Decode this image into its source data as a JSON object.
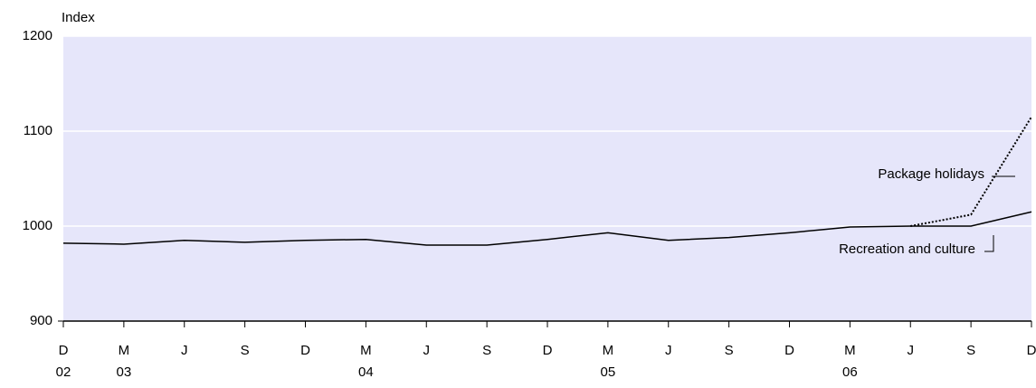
{
  "chart_data": {
    "type": "line",
    "y_label": "Index",
    "categories": [
      "D",
      "M",
      "J",
      "S",
      "D",
      "M",
      "J",
      "S",
      "D",
      "M",
      "J",
      "S",
      "D",
      "M",
      "J",
      "S",
      "D"
    ],
    "years": [
      "02",
      "03",
      null,
      null,
      null,
      "04",
      null,
      null,
      null,
      "05",
      null,
      null,
      null,
      "06",
      null,
      null,
      null
    ],
    "series": [
      {
        "name": "Recreation and culture",
        "color": "#000000",
        "style": "solid",
        "values": [
          982,
          981,
          985,
          983,
          985,
          986,
          980,
          980,
          986,
          993,
          985,
          988,
          993,
          999,
          1000,
          1000,
          1015
        ]
      },
      {
        "name": "Package holidays",
        "color": "#000000",
        "style": "dotted",
        "values": [
          null,
          null,
          null,
          null,
          null,
          null,
          null,
          null,
          null,
          null,
          null,
          null,
          null,
          null,
          1000,
          1012,
          1115
        ]
      }
    ],
    "ylim": [
      900,
      1200
    ],
    "yticks": [
      900,
      1000,
      1100,
      1200
    ],
    "grid": true,
    "background": "#e6e6fa"
  }
}
